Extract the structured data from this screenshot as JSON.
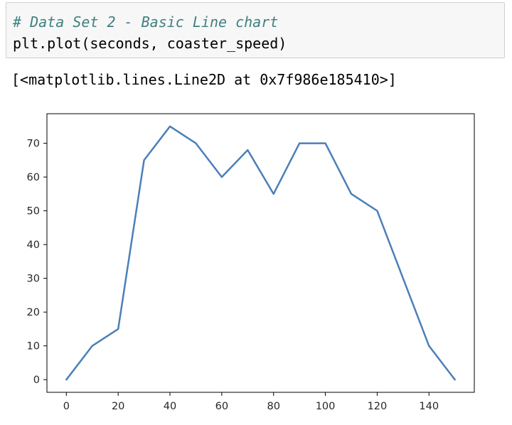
{
  "notebook": {
    "comment": "# Data Set 2 - Basic Line chart",
    "code": "plt.plot(seconds, coaster_speed)",
    "output": "[<matplotlib.lines.Line2D at 0x7f986e185410>]"
  },
  "chart_data": {
    "type": "line",
    "title": "",
    "xlabel": "",
    "ylabel": "",
    "x": [
      0,
      10,
      20,
      30,
      40,
      50,
      60,
      70,
      80,
      90,
      100,
      110,
      120,
      130,
      140,
      150
    ],
    "series": [
      {
        "values": [
          0,
          10,
          15,
          65,
          75,
          70,
          60,
          68,
          55,
          70,
          70,
          55,
          50,
          30,
          10,
          0
        ],
        "color": "#4c7fb8"
      }
    ],
    "xlim": [
      -7.5,
      157.5
    ],
    "ylim": [
      -3.75,
      78.75
    ],
    "xticks": [
      0,
      20,
      40,
      60,
      80,
      100,
      120,
      140
    ],
    "yticks": [
      0,
      10,
      20,
      30,
      40,
      50,
      60,
      70
    ],
    "grid": false
  }
}
